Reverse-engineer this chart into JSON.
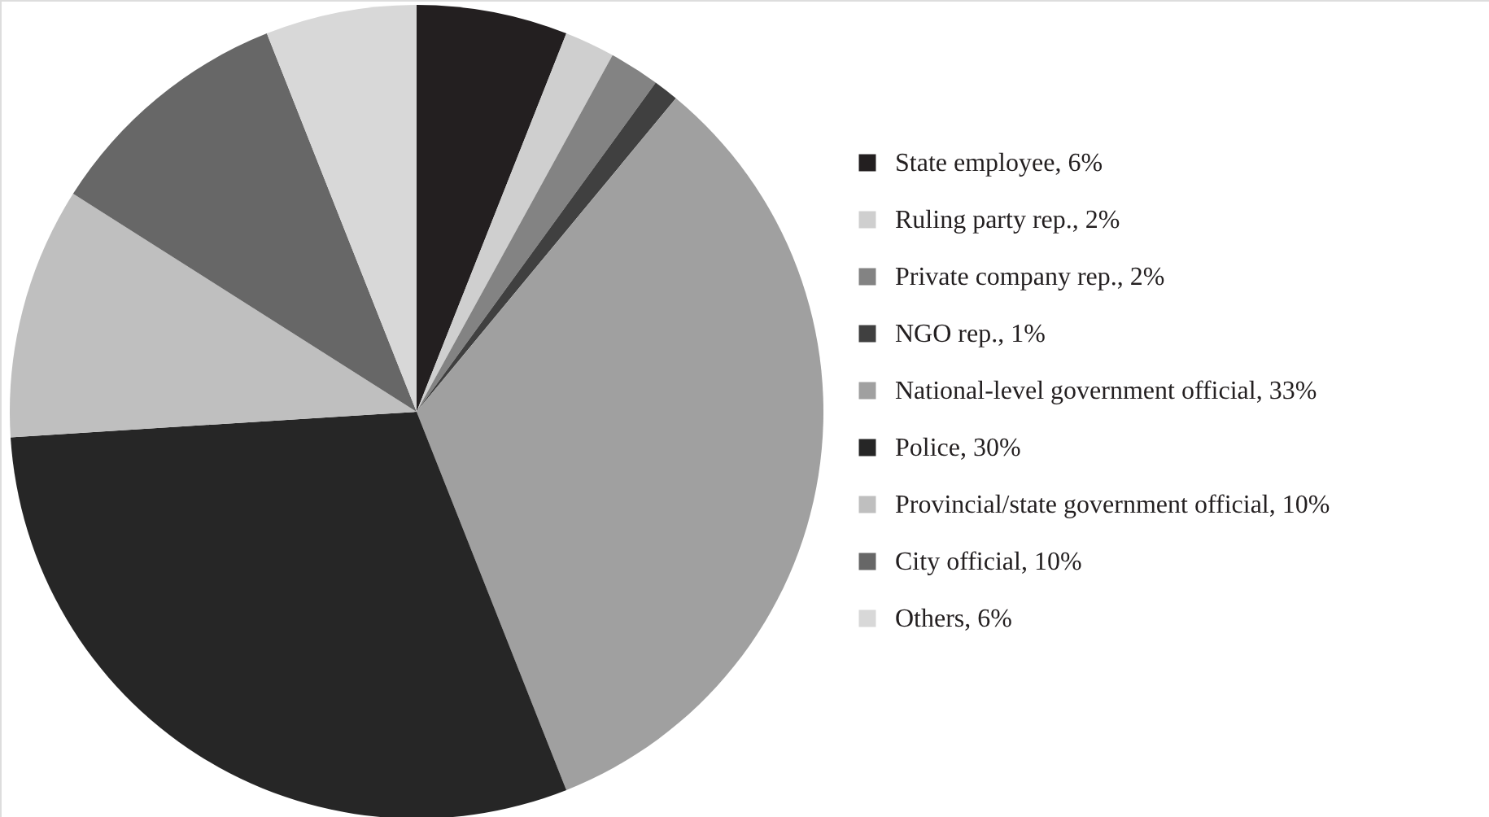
{
  "chart_data": {
    "type": "pie",
    "categories": [
      "State employee, 6%",
      "Ruling party rep., 2%",
      "Private company rep., 2%",
      "NGO rep., 1%",
      "National-level government official, 33%",
      "Police, 30%",
      "Provincial/state government official, 10%",
      "City official, 10%",
      "Others, 6%"
    ],
    "values": [
      6,
      2,
      2,
      1,
      33,
      30,
      10,
      10,
      6
    ],
    "colors": [
      "#231f20",
      "#cfcfcf",
      "#838383",
      "#404040",
      "#a0a0a0",
      "#262626",
      "#bfbfbf",
      "#676767",
      "#d8d8d8"
    ],
    "legend": "right"
  }
}
